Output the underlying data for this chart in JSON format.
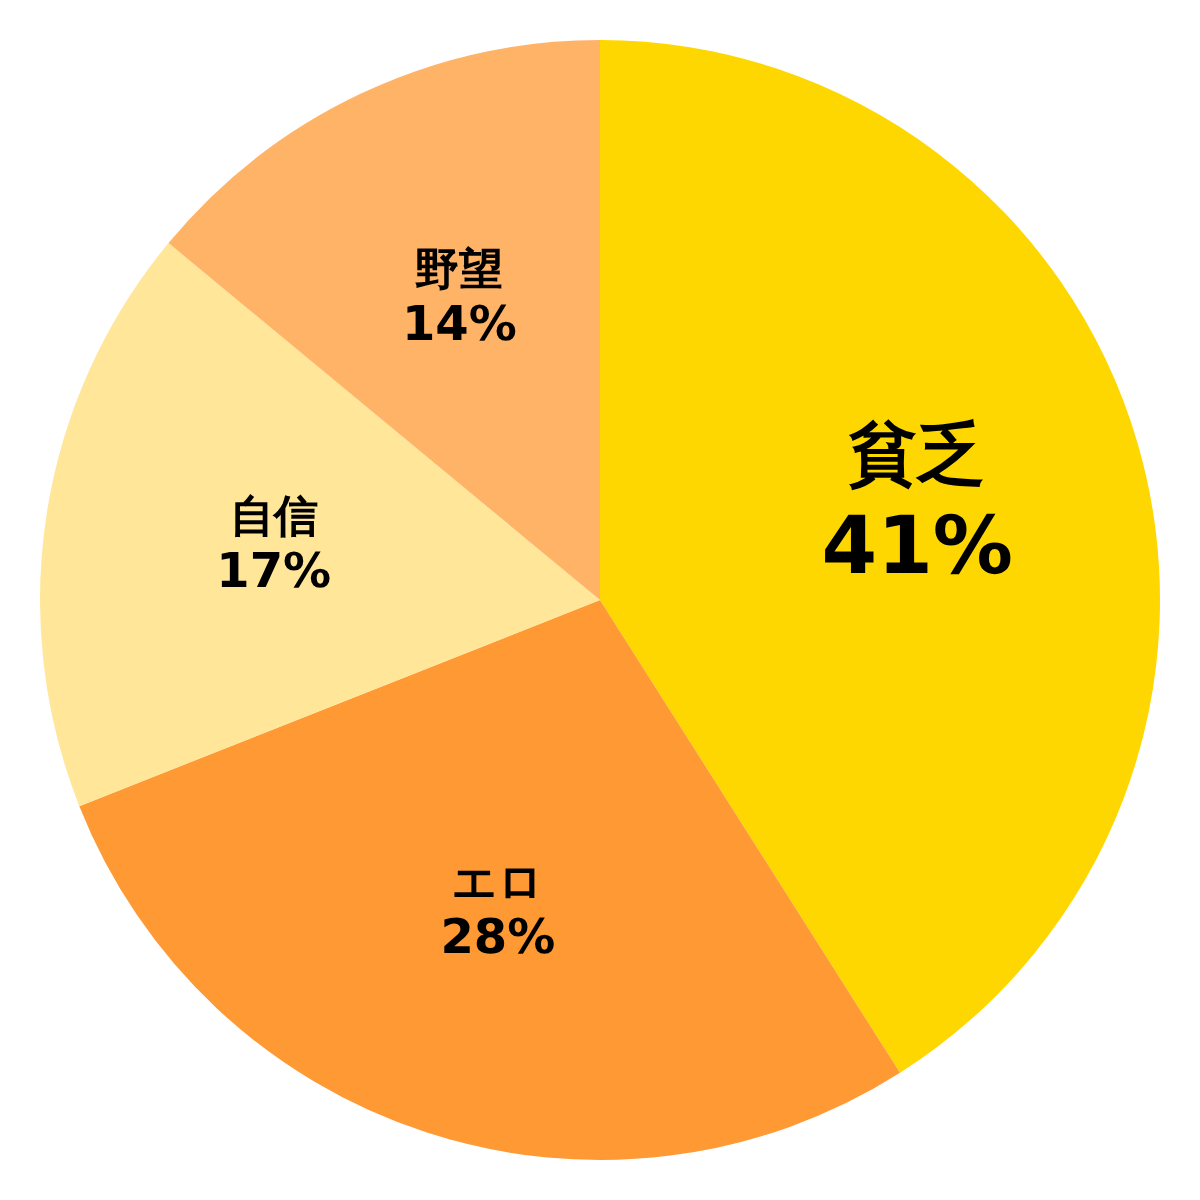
{
  "chart_data": {
    "type": "pie",
    "categories": [
      "貧乏",
      "エロ",
      "自信",
      "野望"
    ],
    "values": [
      41,
      28,
      17,
      14
    ],
    "value_labels": [
      "41%",
      "28%",
      "17%",
      "14%"
    ],
    "colors": [
      "#ffd700",
      "#ff9933",
      "#ffe699",
      "#ffb366"
    ],
    "legend": false
  }
}
